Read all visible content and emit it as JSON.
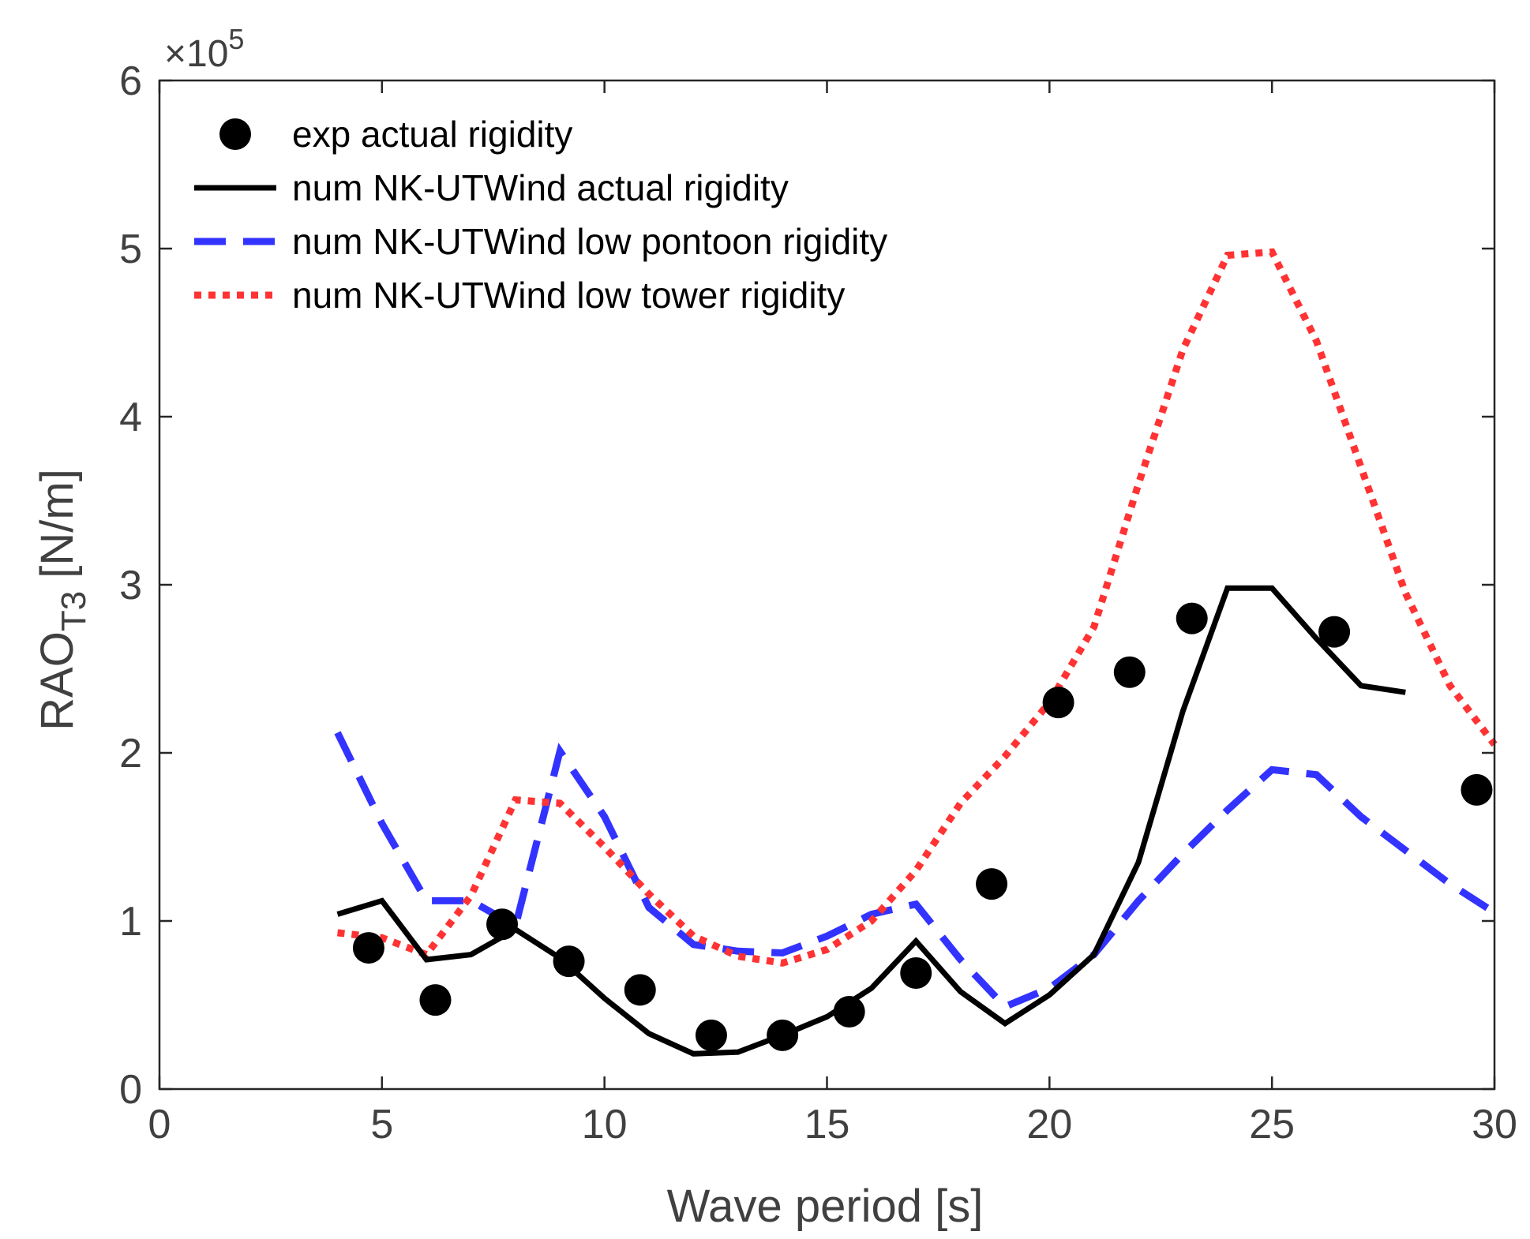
{
  "chart_data": {
    "type": "line",
    "xlabel": "Wave period [s]",
    "ylabel_main": "RAO",
    "ylabel_sub": "T3",
    "ylabel_unit": " [N/m]",
    "y_exponent_prefix": "×10",
    "y_exponent_power": "5",
    "xlim": [
      0,
      30
    ],
    "ylim": [
      0,
      6
    ],
    "x_ticks": [
      0,
      5,
      10,
      15,
      20,
      25,
      30
    ],
    "y_ticks": [
      0,
      1,
      2,
      3,
      4,
      5,
      6
    ],
    "grid": false,
    "legend_position": "top-left",
    "series": [
      {
        "name": "exp actual rigidity",
        "style": "markers",
        "color": "#000000",
        "x": [
          4.7,
          6.2,
          7.7,
          9.2,
          10.8,
          12.4,
          14.0,
          15.5,
          17.0,
          18.7,
          20.2,
          21.8,
          23.2,
          26.4,
          29.6
        ],
        "y": [
          0.84,
          0.53,
          0.98,
          0.76,
          0.59,
          0.32,
          0.32,
          0.46,
          0.69,
          1.22,
          2.3,
          2.48,
          2.8,
          2.72,
          1.78
        ]
      },
      {
        "name": "num NK-UTWind actual rigidity",
        "style": "solid",
        "color": "#000000",
        "x": [
          4,
          5,
          6,
          7,
          8,
          9,
          10,
          11,
          12,
          13,
          14,
          15,
          16,
          17,
          18,
          19,
          20,
          21,
          22,
          23,
          24,
          25,
          26,
          27,
          28
        ],
        "y": [
          1.04,
          1.12,
          0.77,
          0.8,
          0.95,
          0.78,
          0.54,
          0.33,
          0.21,
          0.22,
          0.32,
          0.43,
          0.6,
          0.88,
          0.58,
          0.39,
          0.56,
          0.8,
          1.35,
          2.25,
          2.98,
          2.98,
          2.68,
          2.4,
          2.36
        ]
      },
      {
        "name": "num NK-UTWind low pontoon rigidity",
        "style": "dashed",
        "color": "#3333ff",
        "x": [
          4,
          5,
          6,
          7,
          8,
          9,
          10,
          11,
          12,
          13,
          14,
          15,
          16,
          17,
          18,
          19,
          20,
          21,
          22,
          23,
          24,
          25,
          26,
          27,
          28,
          29,
          30
        ],
        "y": [
          2.12,
          1.58,
          1.12,
          1.12,
          0.97,
          2.01,
          1.62,
          1.08,
          0.86,
          0.82,
          0.81,
          0.91,
          1.04,
          1.1,
          0.77,
          0.49,
          0.6,
          0.8,
          1.12,
          1.4,
          1.66,
          1.9,
          1.87,
          1.62,
          1.42,
          1.22,
          1.05
        ]
      },
      {
        "name": "num NK-UTWind low tower rigidity",
        "style": "dotted",
        "color": "#ff3333",
        "x": [
          4,
          5,
          6,
          7,
          8,
          9,
          10,
          11,
          12,
          13,
          14,
          15,
          16,
          17,
          18,
          19,
          20,
          21,
          22,
          23,
          24,
          25,
          26,
          27,
          28,
          29,
          30
        ],
        "y": [
          0.93,
          0.9,
          0.8,
          1.15,
          1.72,
          1.7,
          1.44,
          1.16,
          0.91,
          0.79,
          0.75,
          0.83,
          1.0,
          1.3,
          1.7,
          1.98,
          2.3,
          2.75,
          3.6,
          4.4,
          4.96,
          4.98,
          4.45,
          3.7,
          2.95,
          2.4,
          2.05
        ]
      }
    ]
  }
}
